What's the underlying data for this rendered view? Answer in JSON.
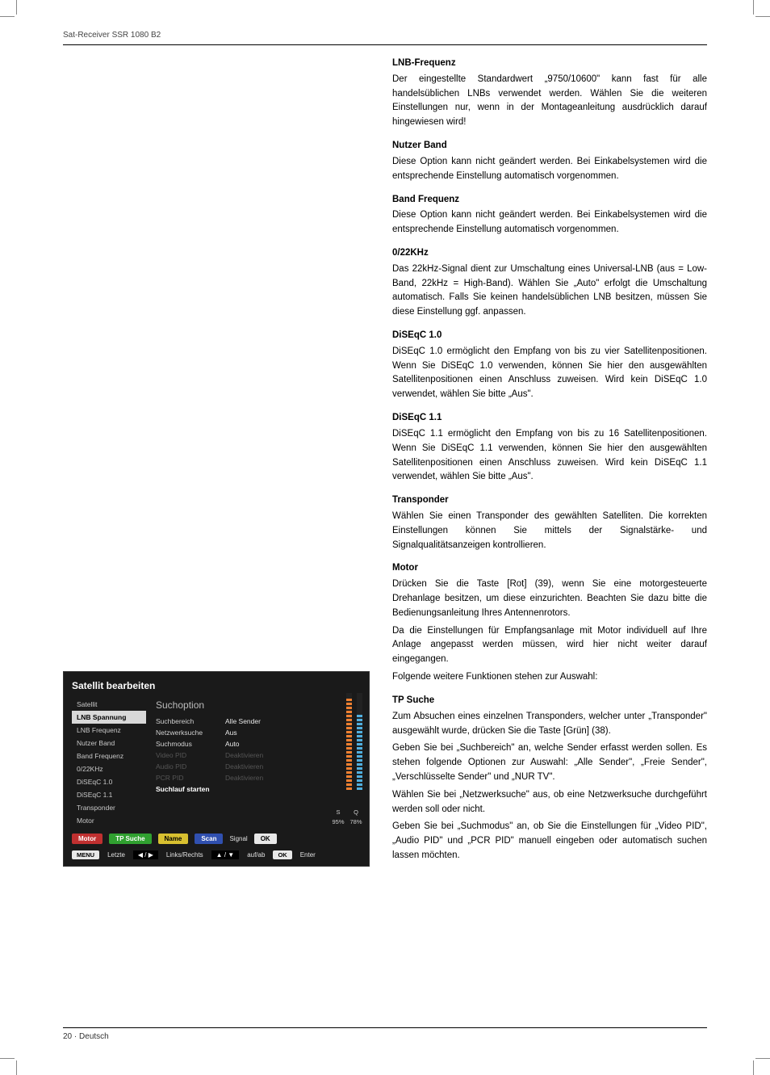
{
  "header": {
    "product": "Sat-Receiver SSR 1080 B2"
  },
  "footer": {
    "page": "20",
    "sep": "·",
    "lang": "Deutsch"
  },
  "sections": {
    "lnb_freq": {
      "title": "LNB-Frequenz",
      "p1": "Der eingestellte Standardwert „9750/10600\" kann fast für alle handelsüblichen LNBs verwendet werden. Wählen Sie die weiteren Einstellungen nur, wenn in der Montageanleitung ausdrücklich darauf hingewiesen wird!"
    },
    "nutzer_band": {
      "title": "Nutzer Band",
      "p1": "Diese Option kann nicht geändert werden. Bei Einkabelsystemen wird die entsprechende Einstellung automatisch vorgenommen."
    },
    "band_freq": {
      "title": "Band Frequenz",
      "p1": "Diese Option kann nicht geändert werden. Bei Einkabelsystemen wird die entsprechende Einstellung automatisch vorgenommen."
    },
    "khz": {
      "title": "0/22KHz",
      "p1": "Das 22kHz-Signal dient zur Umschaltung eines Universal-LNB (aus = Low-Band, 22kHz = High-Band). Wählen Sie „Auto\" erfolgt die Umschaltung automatisch. Falls Sie keinen handelsüblichen LNB besitzen, müssen Sie diese Einstellung ggf. anpassen."
    },
    "diseqc10": {
      "title": "DiSEqC 1.0",
      "p1": "DiSEqC 1.0 ermöglicht den Empfang von bis zu vier Satellitenpositionen. Wenn Sie DiSEqC 1.0 verwenden, können Sie hier den ausgewählten Satellitenpositionen einen Anschluss zuweisen. Wird kein DiSEqC 1.0 verwendet, wählen Sie bitte „Aus\"."
    },
    "diseqc11": {
      "title": "DiSEqC 1.1",
      "p1": "DiSEqC 1.1 ermöglicht den Empfang von bis zu 16 Satellitenpositionen. Wenn Sie DiSEqC 1.1 verwenden, können Sie hier den ausgewählten Satellitenpositionen einen Anschluss zuweisen. Wird kein DiSEqC 1.1 verwendet, wählen Sie bitte „Aus\"."
    },
    "transponder": {
      "title": "Transponder",
      "p1": "Wählen Sie einen Transponder des gewählten Satelliten. Die korrekten Einstellungen können Sie mittels der Signalstärke- und Signalqualitätsanzeigen kontrollieren."
    },
    "motor": {
      "title": "Motor",
      "p1": "Drücken Sie die Taste [Rot] (39), wenn Sie eine motorgesteuerte Drehanlage besitzen, um diese einzurichten. Beachten Sie dazu bitte die Bedienungsanleitung Ihres Antennenrotors.",
      "p2": "Da die Einstellungen für Empfangsanlage mit Motor individuell auf Ihre Anlage angepasst werden müssen, wird hier nicht weiter darauf eingegangen.",
      "p3": "Folgende weitere Funktionen stehen zur Auswahl:"
    },
    "tpsuche": {
      "title": "TP Suche",
      "p1": "Zum Absuchen eines einzelnen Transponders, welcher unter „Transponder\" ausgewählt wurde, drücken Sie die Taste [Grün] (38).",
      "p2": "Geben Sie bei „Suchbereich\" an, welche Sender erfasst werden sollen. Es stehen folgende Optionen zur Auswahl: „Alle Sender\", „Freie Sender\", „Verschlüsselte Sender\" und „NUR TV\".",
      "p3": "Wählen Sie bei „Netzwerksuche\" aus, ob eine Netzwerksuche durchgeführt werden soll oder nicht.",
      "p4": "Geben Sie bei „Suchmodus\" an, ob Sie die Einstellungen für „Video PID\", „Audio PID\" und „PCR PID\" manuell eingeben oder automatisch suchen lassen möchten."
    }
  },
  "dialog": {
    "title": "Satellit bearbeiten",
    "nav": {
      "satellit": "Satellit",
      "lnb_spannung": "LNB Spannung",
      "lnb_frequenz": "LNB Frequenz",
      "nutzer_band": "Nutzer Band",
      "band_frequenz": "Band Frequenz",
      "khz": "0/22KHz",
      "diseqc10": "DiSEqC 1.0",
      "diseqc11": "DiSEqC 1.1",
      "transponder": "Transponder",
      "motor": "Motor"
    },
    "panel_title": "Suchoption",
    "rows": {
      "suchbereich": {
        "label": "Suchbereich",
        "value": "Alle Sender"
      },
      "netzwerksuche": {
        "label": "Netzwerksuche",
        "value": "Aus"
      },
      "suchmodus": {
        "label": "Suchmodus",
        "value": "Auto"
      },
      "video_pid": {
        "label": "Video PID",
        "value": "Deaktivieren"
      },
      "audio_pid": {
        "label": "Audio PID",
        "value": "Deaktivieren"
      },
      "pcr_pid": {
        "label": "PCR PID",
        "value": "Deaktivieren"
      },
      "suchlauf": {
        "label": "Suchlauf starten",
        "value": ""
      }
    },
    "signal": {
      "s_label": "S",
      "q_label": "Q",
      "s_pct": "95%",
      "q_pct": "78%",
      "s_color": "#f08030",
      "q_color": "#50b0e0",
      "s_fill": 95,
      "q_fill": 78
    },
    "colorbar": {
      "motor": "Motor",
      "tpsuche": "TP Suche",
      "name": "Name",
      "scan": "Scan",
      "signal": "Signal",
      "ok": "OK"
    },
    "bottombar": {
      "menu": "MENU",
      "letzte": "Letzte",
      "lr_icon": "◀ / ▶",
      "lr": "Links/Rechts",
      "ud_icon": "▲ / ▼",
      "ud": "auf/ab",
      "ok": "OK",
      "enter": "Enter"
    }
  }
}
